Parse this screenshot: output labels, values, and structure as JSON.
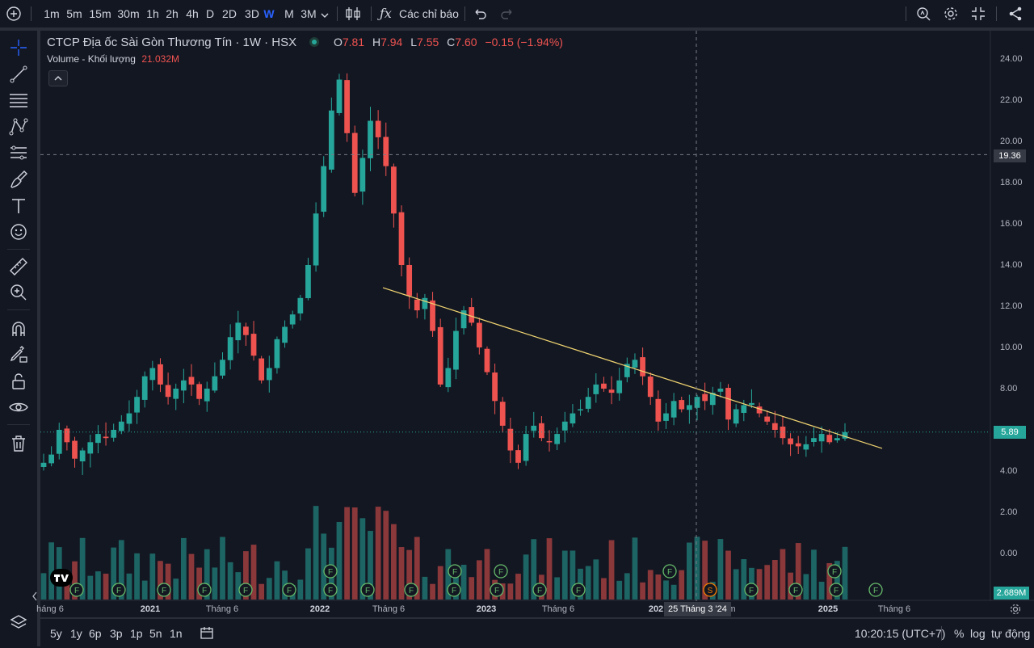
{
  "toolbar": {
    "intervals": [
      "1m",
      "5m",
      "15m",
      "30m",
      "1h",
      "2h",
      "4h",
      "D",
      "2D",
      "3D",
      "W",
      "M",
      "3M"
    ],
    "active_interval": "W",
    "indicators_label": "Các chỉ báo"
  },
  "legend": {
    "title": "CTCP Địa ốc Sài Gòn Thương Tín · 1W · HSX",
    "o_label": "O",
    "o_value": "7.81",
    "h_label": "H",
    "h_value": "7.94",
    "l_label": "L",
    "l_value": "7.55",
    "c_label": "C",
    "c_value": "7.60",
    "change": "−0.15 (−1.94%)",
    "volume_label": "Volume - Khối lượng",
    "volume_value": "21.032M"
  },
  "price_axis": {
    "labels": [
      "24.00",
      "22.00",
      "20.00",
      "18.00",
      "16.00",
      "14.00",
      "12.00",
      "10.00",
      "8.00",
      "6.00",
      "4.00",
      "2.00",
      "0.00"
    ],
    "crosshair_price": "19.36",
    "last_price": "5.89",
    "volume_tag": "2.689M"
  },
  "time_axis": {
    "labels": [
      "háng 6",
      "2021",
      "Tháng 6",
      "2022",
      "Tháng 6",
      "2023",
      "Tháng 6",
      "202",
      "m",
      "2025",
      "Tháng 6"
    ],
    "crosshair_date": "25 Tháng 3 '24"
  },
  "events": {
    "badges": [
      "F",
      "F",
      "F",
      "F",
      "F",
      "F",
      "F",
      "F",
      "F",
      "F",
      "F",
      "F",
      "F",
      "S",
      "F",
      "F",
      "F",
      "F",
      "F",
      "F",
      "F",
      "F",
      "F",
      "F",
      "F",
      "F",
      "F",
      "F",
      "F"
    ]
  },
  "bottom": {
    "ranges": [
      "5y",
      "1y",
      "6p",
      "3p",
      "1p",
      "5n",
      "1n"
    ],
    "clock": "10:20:15 (UTC+7)",
    "percent": "%",
    "log": "log",
    "auto": "tự động"
  },
  "colors": {
    "up": "#26a69a",
    "down": "#ef5350",
    "trendline": "#f0d471",
    "accent": "#2962ff",
    "bg": "#131722"
  },
  "chart_data": {
    "type": "candlestick",
    "title": "CTCP Địa ốc Sài Gòn Thương Tín · 1W · HSX",
    "ylim": [
      0,
      24.5
    ],
    "y_ticks": [
      0,
      2,
      4,
      6,
      8,
      10,
      12,
      14,
      16,
      18,
      20,
      22,
      24
    ],
    "x_ticks": [
      "Tháng 6",
      "2021",
      "Tháng 6",
      "2022",
      "Tháng 6",
      "2023",
      "Tháng 6",
      "2024",
      "Tháng 6",
      "2025",
      "Tháng 6"
    ],
    "series_close_approx": [
      4.4,
      4.8,
      6.0,
      5.4,
      4.6,
      5.0,
      5.4,
      5.8,
      5.6,
      6.0,
      6.4,
      6.8,
      7.6,
      8.6,
      9.0,
      8.2,
      7.6,
      8.0,
      8.4,
      8.2,
      7.5,
      8.0,
      8.6,
      9.4,
      10.5,
      11.2,
      10.6,
      9.6,
      8.4,
      9.0,
      10.4,
      11.0,
      11.6,
      12.4,
      14.0,
      16.5,
      18.8,
      21.5,
      23.0,
      20.4,
      17.5,
      19.2,
      21.0,
      20.2,
      18.8,
      16.5,
      14.0,
      12.5,
      11.8,
      12.4,
      10.8,
      8.2,
      9.0,
      10.8,
      11.8,
      11.2,
      10.0,
      8.8,
      7.4,
      6.2,
      5.0,
      4.4,
      5.8,
      6.2,
      5.6,
      5.4,
      5.8,
      6.4,
      6.8,
      7.0,
      7.6,
      8.2,
      8.0,
      7.8,
      8.4,
      9.2,
      9.4,
      8.6,
      7.6,
      6.4,
      6.8,
      7.4,
      7.0,
      7.2,
      7.6,
      7.4,
      7.8,
      8.0,
      6.5,
      7.0,
      7.2,
      7.3,
      6.8,
      6.4,
      6.0,
      5.6,
      5.3,
      5.2,
      5.3,
      5.6,
      5.8,
      5.4,
      5.6,
      5.89
    ],
    "volume_unit": "M",
    "last_volume": "2.689M",
    "trendline": {
      "from": {
        "x": "2022-07",
        "y": 12.9
      },
      "to": {
        "x": "2025-06",
        "y": 5.1
      }
    }
  }
}
